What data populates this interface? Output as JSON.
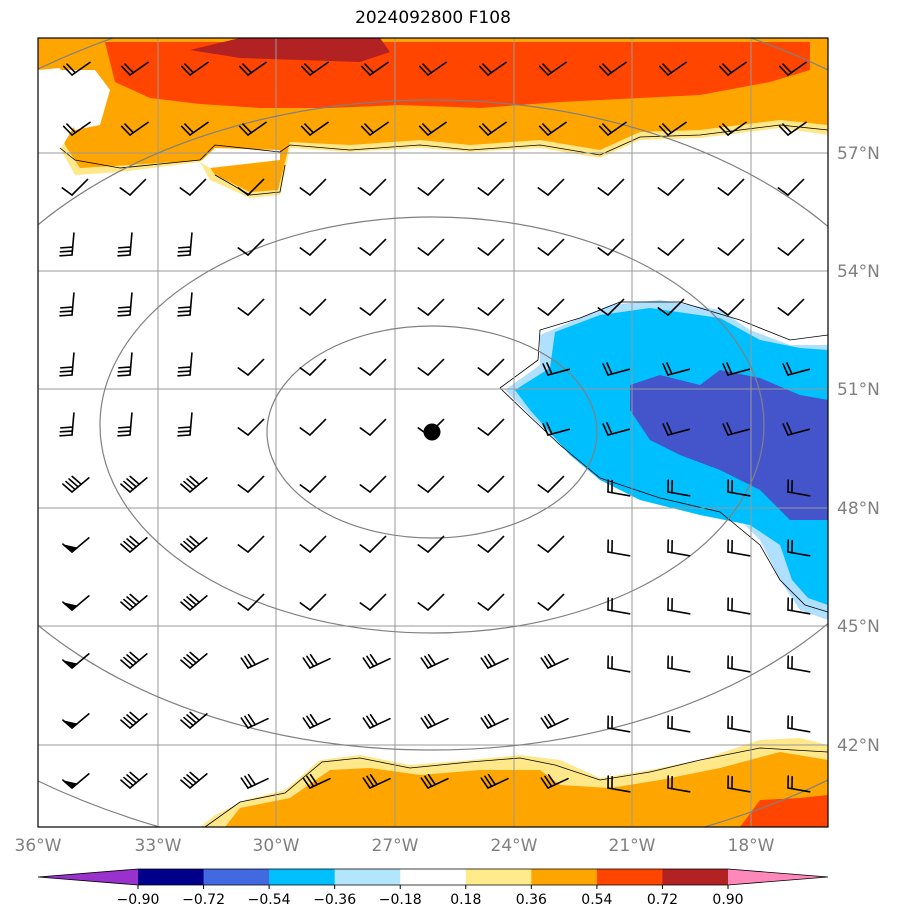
{
  "title": "2024092800 F108",
  "map": {
    "lon_range": [
      -36,
      -16.5
    ],
    "lat_range": [
      39.7,
      59.7
    ],
    "lon_tick_labels": [
      "36°W",
      "33°W",
      "30°W",
      "27°W",
      "24°W",
      "21°W",
      "18°W"
    ],
    "lat_tick_labels": [
      "57°N",
      "54°N",
      "51°N",
      "48°N",
      "45°N",
      "42°N"
    ],
    "center_marker": {
      "lon": -26,
      "lat": 49.6
    },
    "fill_colors": {
      "0.36-0.54": "#ffa500",
      "0.54-0.72": "#ff4500",
      "0.72-0.90": "#b22222",
      "0.18-0.36": "#ffe88a",
      "-0.36--0.18": "#b0e0ff",
      "-0.54--0.36": "#00bfff",
      "-0.72--0.54": "#4455cc"
    }
  },
  "colorbar": {
    "tick_labels": [
      "−0.90",
      "−0.72",
      "−0.54",
      "−0.36",
      "−0.18",
      "0.18",
      "0.36",
      "0.54",
      "0.72",
      "0.90"
    ],
    "colors": [
      "#9932cc",
      "#00008b",
      "#4169e1",
      "#00bfff",
      "#b3e5fc",
      "#ffffff",
      "#ffeb8a",
      "#ffa500",
      "#ff4500",
      "#b22222",
      "#ff88bb"
    ]
  }
}
